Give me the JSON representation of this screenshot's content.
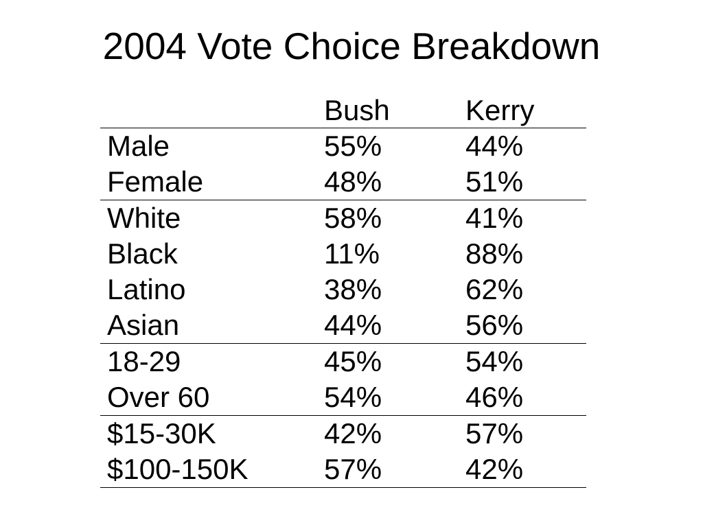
{
  "title": "2004 Vote Choice Breakdown",
  "table": {
    "columns": [
      "",
      "Bush",
      "Kerry"
    ],
    "groups": [
      {
        "rows": [
          {
            "category": "Male",
            "bush": "55%",
            "kerry": "44%"
          },
          {
            "category": "Female",
            "bush": "48%",
            "kerry": "51%"
          }
        ]
      },
      {
        "rows": [
          {
            "category": "White",
            "bush": "58%",
            "kerry": "41%"
          },
          {
            "category": "Black",
            "bush": "11%",
            "kerry": "88%"
          },
          {
            "category": "Latino",
            "bush": "38%",
            "kerry": "62%"
          },
          {
            "category": "Asian",
            "bush": "44%",
            "kerry": "56%"
          }
        ]
      },
      {
        "rows": [
          {
            "category": "18-29",
            "bush": "45%",
            "kerry": "54%"
          },
          {
            "category": "Over 60",
            "bush": "54%",
            "kerry": "46%"
          }
        ]
      },
      {
        "rows": [
          {
            "category": "$15-30K",
            "bush": "42%",
            "kerry": "57%"
          },
          {
            "category": "$100-150K",
            "bush": "57%",
            "kerry": "42%"
          }
        ]
      }
    ]
  }
}
